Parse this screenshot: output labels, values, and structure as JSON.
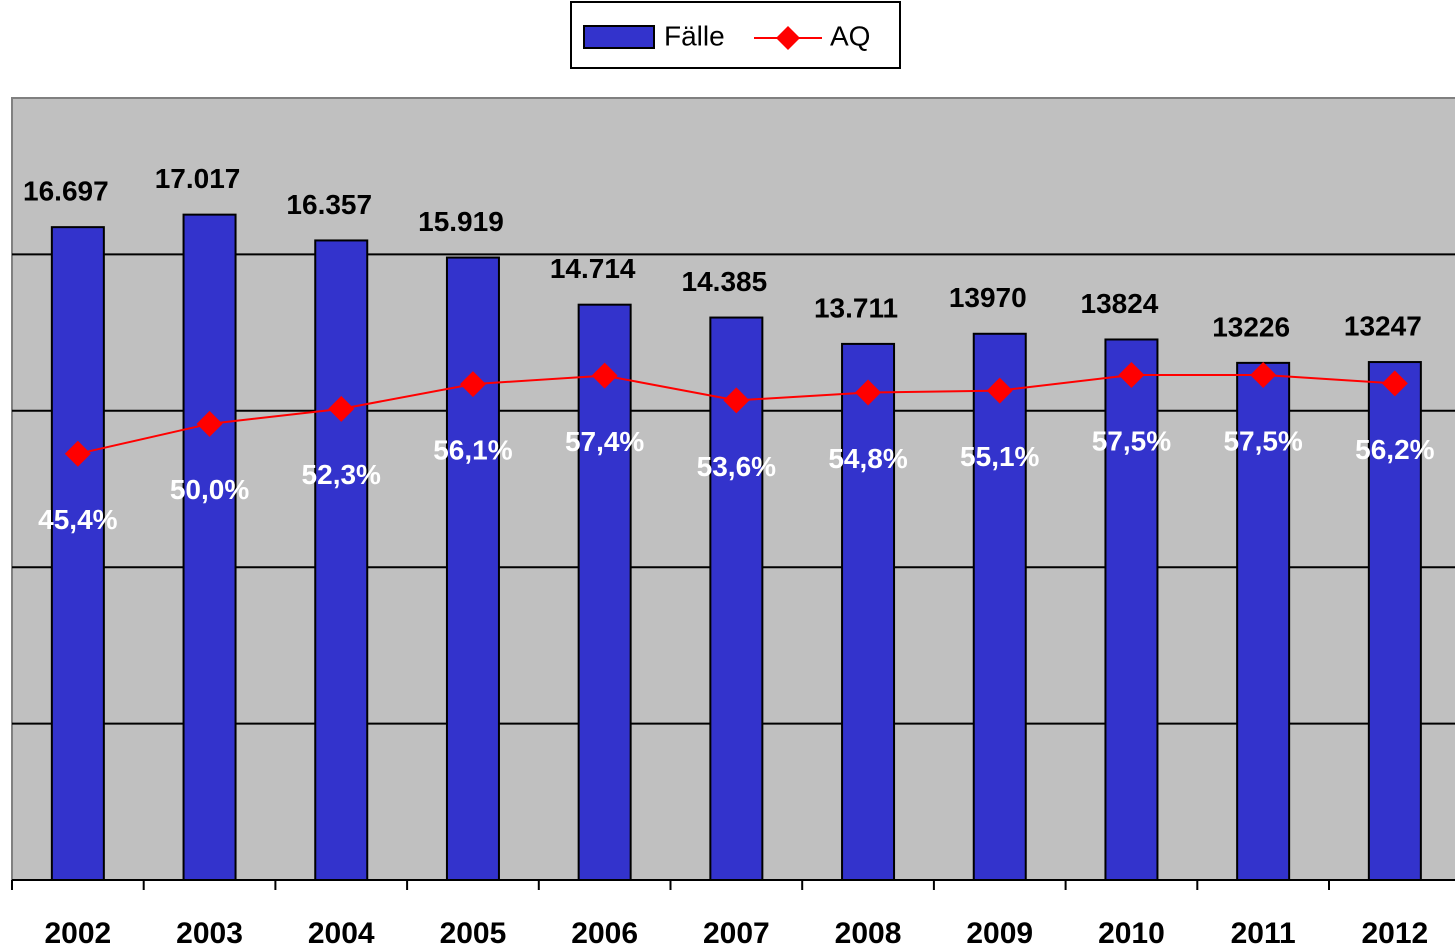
{
  "chart_data": {
    "type": "bar",
    "categories": [
      "2002",
      "2003",
      "2004",
      "2005",
      "2006",
      "2007",
      "2008",
      "2009",
      "2010",
      "2011",
      "2012"
    ],
    "ylim": [
      0,
      20000
    ],
    "yticks": [
      0,
      4000,
      8000,
      12000,
      16000,
      20000
    ],
    "y2lim": [
      -20,
      100
    ],
    "grid": true,
    "legend": "top",
    "series": [
      {
        "name": "Fälle",
        "type": "bar",
        "color": "#3333cc",
        "values": [
          16697,
          17017,
          16357,
          15919,
          14714,
          14385,
          13711,
          13970,
          13824,
          13226,
          13247
        ],
        "value_labels": [
          "16.697",
          "17.017",
          "16.357",
          "15.919",
          "14.714",
          "14.385",
          "13.711",
          "13970",
          "13824",
          "13226",
          "13247"
        ]
      },
      {
        "name": "AQ",
        "type": "line",
        "axis": "y2",
        "color": "#ff0000",
        "values": [
          45.4,
          50.0,
          52.3,
          56.1,
          57.4,
          53.6,
          54.8,
          55.1,
          57.5,
          57.5,
          56.2
        ],
        "value_labels": [
          "45,4%",
          "50,0%",
          "52,3%",
          "56,1%",
          "57,4%",
          "53,6%",
          "54,8%",
          "55,1%",
          "57,5%",
          "57,5%",
          "56,2%"
        ]
      }
    ]
  }
}
